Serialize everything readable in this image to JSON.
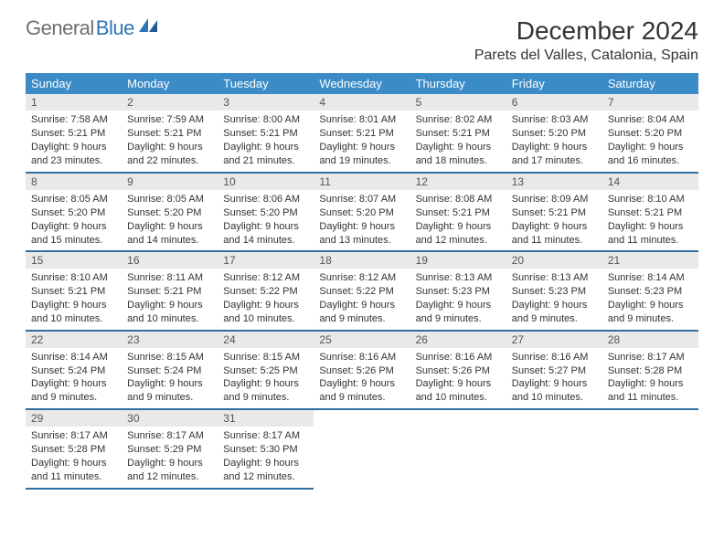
{
  "brand": {
    "part1": "General",
    "part2": "Blue"
  },
  "title": "December 2024",
  "location": "Parets del Valles, Catalonia, Spain",
  "colors": {
    "header_bg": "#3b8bc6",
    "header_text": "#ffffff",
    "daynum_bg": "#e9e9e9",
    "row_border": "#2f6fa3",
    "brand_gray": "#6c6f73",
    "brand_blue": "#2d75b6",
    "page_bg": "#ffffff"
  },
  "weekdays": [
    "Sunday",
    "Monday",
    "Tuesday",
    "Wednesday",
    "Thursday",
    "Friday",
    "Saturday"
  ],
  "calendar": {
    "type": "table",
    "columns": 7,
    "rows": 5,
    "cell_fontsize": 11,
    "header_fontsize": 13,
    "daynum_fontsize": 12
  },
  "days": [
    {
      "n": 1,
      "sunrise": "Sunrise: 7:58 AM",
      "sunset": "Sunset: 5:21 PM",
      "day1": "Daylight: 9 hours",
      "day2": "and 23 minutes."
    },
    {
      "n": 2,
      "sunrise": "Sunrise: 7:59 AM",
      "sunset": "Sunset: 5:21 PM",
      "day1": "Daylight: 9 hours",
      "day2": "and 22 minutes."
    },
    {
      "n": 3,
      "sunrise": "Sunrise: 8:00 AM",
      "sunset": "Sunset: 5:21 PM",
      "day1": "Daylight: 9 hours",
      "day2": "and 21 minutes."
    },
    {
      "n": 4,
      "sunrise": "Sunrise: 8:01 AM",
      "sunset": "Sunset: 5:21 PM",
      "day1": "Daylight: 9 hours",
      "day2": "and 19 minutes."
    },
    {
      "n": 5,
      "sunrise": "Sunrise: 8:02 AM",
      "sunset": "Sunset: 5:21 PM",
      "day1": "Daylight: 9 hours",
      "day2": "and 18 minutes."
    },
    {
      "n": 6,
      "sunrise": "Sunrise: 8:03 AM",
      "sunset": "Sunset: 5:20 PM",
      "day1": "Daylight: 9 hours",
      "day2": "and 17 minutes."
    },
    {
      "n": 7,
      "sunrise": "Sunrise: 8:04 AM",
      "sunset": "Sunset: 5:20 PM",
      "day1": "Daylight: 9 hours",
      "day2": "and 16 minutes."
    },
    {
      "n": 8,
      "sunrise": "Sunrise: 8:05 AM",
      "sunset": "Sunset: 5:20 PM",
      "day1": "Daylight: 9 hours",
      "day2": "and 15 minutes."
    },
    {
      "n": 9,
      "sunrise": "Sunrise: 8:05 AM",
      "sunset": "Sunset: 5:20 PM",
      "day1": "Daylight: 9 hours",
      "day2": "and 14 minutes."
    },
    {
      "n": 10,
      "sunrise": "Sunrise: 8:06 AM",
      "sunset": "Sunset: 5:20 PM",
      "day1": "Daylight: 9 hours",
      "day2": "and 14 minutes."
    },
    {
      "n": 11,
      "sunrise": "Sunrise: 8:07 AM",
      "sunset": "Sunset: 5:20 PM",
      "day1": "Daylight: 9 hours",
      "day2": "and 13 minutes."
    },
    {
      "n": 12,
      "sunrise": "Sunrise: 8:08 AM",
      "sunset": "Sunset: 5:21 PM",
      "day1": "Daylight: 9 hours",
      "day2": "and 12 minutes."
    },
    {
      "n": 13,
      "sunrise": "Sunrise: 8:09 AM",
      "sunset": "Sunset: 5:21 PM",
      "day1": "Daylight: 9 hours",
      "day2": "and 11 minutes."
    },
    {
      "n": 14,
      "sunrise": "Sunrise: 8:10 AM",
      "sunset": "Sunset: 5:21 PM",
      "day1": "Daylight: 9 hours",
      "day2": "and 11 minutes."
    },
    {
      "n": 15,
      "sunrise": "Sunrise: 8:10 AM",
      "sunset": "Sunset: 5:21 PM",
      "day1": "Daylight: 9 hours",
      "day2": "and 10 minutes."
    },
    {
      "n": 16,
      "sunrise": "Sunrise: 8:11 AM",
      "sunset": "Sunset: 5:21 PM",
      "day1": "Daylight: 9 hours",
      "day2": "and 10 minutes."
    },
    {
      "n": 17,
      "sunrise": "Sunrise: 8:12 AM",
      "sunset": "Sunset: 5:22 PM",
      "day1": "Daylight: 9 hours",
      "day2": "and 10 minutes."
    },
    {
      "n": 18,
      "sunrise": "Sunrise: 8:12 AM",
      "sunset": "Sunset: 5:22 PM",
      "day1": "Daylight: 9 hours",
      "day2": "and 9 minutes."
    },
    {
      "n": 19,
      "sunrise": "Sunrise: 8:13 AM",
      "sunset": "Sunset: 5:23 PM",
      "day1": "Daylight: 9 hours",
      "day2": "and 9 minutes."
    },
    {
      "n": 20,
      "sunrise": "Sunrise: 8:13 AM",
      "sunset": "Sunset: 5:23 PM",
      "day1": "Daylight: 9 hours",
      "day2": "and 9 minutes."
    },
    {
      "n": 21,
      "sunrise": "Sunrise: 8:14 AM",
      "sunset": "Sunset: 5:23 PM",
      "day1": "Daylight: 9 hours",
      "day2": "and 9 minutes."
    },
    {
      "n": 22,
      "sunrise": "Sunrise: 8:14 AM",
      "sunset": "Sunset: 5:24 PM",
      "day1": "Daylight: 9 hours",
      "day2": "and 9 minutes."
    },
    {
      "n": 23,
      "sunrise": "Sunrise: 8:15 AM",
      "sunset": "Sunset: 5:24 PM",
      "day1": "Daylight: 9 hours",
      "day2": "and 9 minutes."
    },
    {
      "n": 24,
      "sunrise": "Sunrise: 8:15 AM",
      "sunset": "Sunset: 5:25 PM",
      "day1": "Daylight: 9 hours",
      "day2": "and 9 minutes."
    },
    {
      "n": 25,
      "sunrise": "Sunrise: 8:16 AM",
      "sunset": "Sunset: 5:26 PM",
      "day1": "Daylight: 9 hours",
      "day2": "and 9 minutes."
    },
    {
      "n": 26,
      "sunrise": "Sunrise: 8:16 AM",
      "sunset": "Sunset: 5:26 PM",
      "day1": "Daylight: 9 hours",
      "day2": "and 10 minutes."
    },
    {
      "n": 27,
      "sunrise": "Sunrise: 8:16 AM",
      "sunset": "Sunset: 5:27 PM",
      "day1": "Daylight: 9 hours",
      "day2": "and 10 minutes."
    },
    {
      "n": 28,
      "sunrise": "Sunrise: 8:17 AM",
      "sunset": "Sunset: 5:28 PM",
      "day1": "Daylight: 9 hours",
      "day2": "and 11 minutes."
    },
    {
      "n": 29,
      "sunrise": "Sunrise: 8:17 AM",
      "sunset": "Sunset: 5:28 PM",
      "day1": "Daylight: 9 hours",
      "day2": "and 11 minutes."
    },
    {
      "n": 30,
      "sunrise": "Sunrise: 8:17 AM",
      "sunset": "Sunset: 5:29 PM",
      "day1": "Daylight: 9 hours",
      "day2": "and 12 minutes."
    },
    {
      "n": 31,
      "sunrise": "Sunrise: 8:17 AM",
      "sunset": "Sunset: 5:30 PM",
      "day1": "Daylight: 9 hours",
      "day2": "and 12 minutes."
    }
  ]
}
